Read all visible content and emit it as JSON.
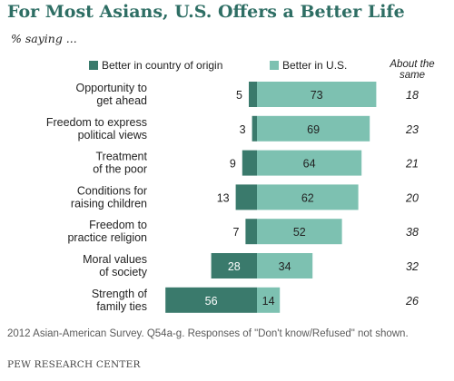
{
  "title": "For Most Asians, U.S. Offers a Better Life",
  "subtitle": "% saying ...",
  "note": "2012 Asian-American Survey. Q54a-g. Responses of \"Don't know/Refused\" not shown.",
  "source": "PEW RESEARCH CENTER",
  "colors": {
    "origin": "#3a7a6c",
    "us": "#7dc1b1",
    "title": "#2e6e64"
  },
  "chart_data": {
    "type": "bar",
    "orientation": "horizontal",
    "stacked": "diverging",
    "categories": [
      [
        "Opportunity to",
        "get ahead"
      ],
      [
        "Freedom to express",
        "political views"
      ],
      [
        "Treatment",
        "of the poor"
      ],
      [
        "Conditions for",
        "raising children"
      ],
      [
        "Freedom to",
        "practice religion"
      ],
      [
        "Moral values",
        "of society"
      ],
      [
        "Strength of",
        "family ties"
      ]
    ],
    "series": [
      {
        "name": "Better in country of origin",
        "values": [
          5,
          3,
          9,
          13,
          7,
          28,
          56
        ]
      },
      {
        "name": "Better in U.S.",
        "values": [
          73,
          69,
          64,
          62,
          52,
          34,
          14
        ]
      }
    ],
    "extra_column": {
      "header": [
        "About the",
        "same"
      ],
      "values": [
        18,
        23,
        21,
        20,
        38,
        32,
        26
      ]
    }
  }
}
